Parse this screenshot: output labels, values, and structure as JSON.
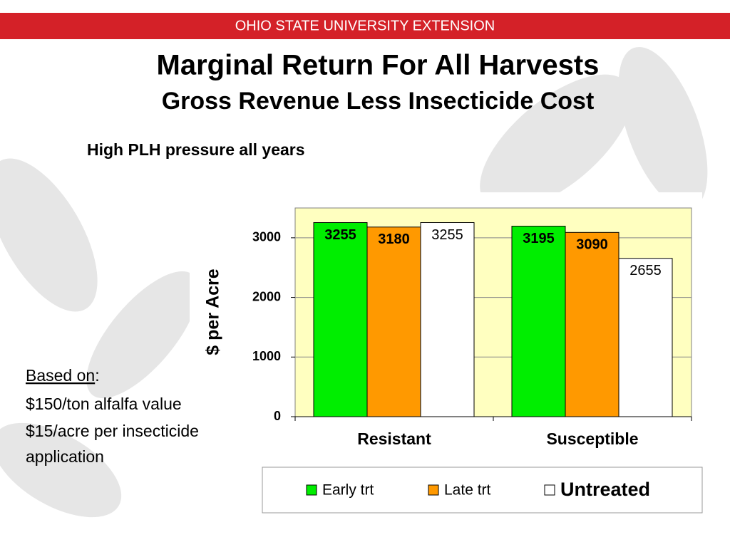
{
  "header": "OHIO STATE UNIVERSITY EXTENSION",
  "notes": {
    "basis_label": "Based on",
    "basis_colon": ":",
    "lines": [
      "$150/ton alfalfa value",
      "$15/acre per insecticide",
      "application"
    ]
  },
  "chart_data": {
    "type": "bar",
    "title": "Marginal Return For All Harvests",
    "subtitle": "Gross Revenue Less Insecticide Cost",
    "annotation": "High PLH pressure all years",
    "y_label": "$ per Acre",
    "categories": [
      "Resistant",
      "Susceptible"
    ],
    "series": [
      {
        "name": "Early trt",
        "color": "#00ee00",
        "values": [
          3255,
          3195
        ]
      },
      {
        "name": "Late trt",
        "color": "#ff9900",
        "values": [
          3180,
          3090
        ]
      },
      {
        "name": "Untreated",
        "color": "#ffffff",
        "values": [
          3255,
          2655
        ]
      }
    ],
    "ylim": [
      0,
      3500
    ],
    "yticks": [
      0,
      1000,
      2000,
      3000
    ],
    "grid": true,
    "plot_background": "#ffffc0",
    "legend": "bottom"
  }
}
